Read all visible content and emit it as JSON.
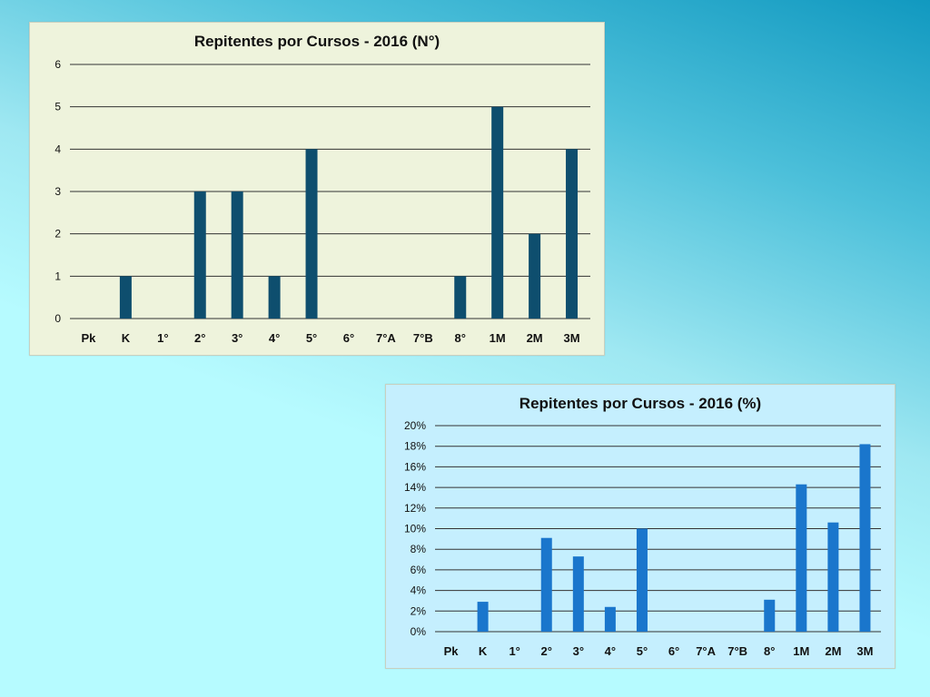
{
  "chart_data": [
    {
      "type": "bar",
      "title": "Repitentes por Cursos - 2016 (N°)",
      "xlabel": "",
      "ylabel": "",
      "categories": [
        "Pk",
        "K",
        "1°",
        "2°",
        "3°",
        "4°",
        "5°",
        "6°",
        "7°A",
        "7°B",
        "8°",
        "1M",
        "2M",
        "3M"
      ],
      "values": [
        0,
        1,
        0,
        3,
        3,
        1,
        4,
        0,
        0,
        0,
        1,
        5,
        2,
        4
      ],
      "ylim": [
        0,
        6
      ],
      "yticks": [
        0,
        1,
        2,
        3,
        4,
        5,
        6
      ],
      "ytick_labels": [
        "0",
        "1",
        "2",
        "3",
        "4",
        "5",
        "6"
      ],
      "grid": true,
      "bar_color": "#0e4e6e",
      "background": "#eef3dc"
    },
    {
      "type": "bar",
      "title": "Repitentes por Cursos - 2016 (%)",
      "xlabel": "",
      "ylabel": "",
      "categories": [
        "Pk",
        "K",
        "1°",
        "2°",
        "3°",
        "4°",
        "5°",
        "6°",
        "7°A",
        "7°B",
        "8°",
        "1M",
        "2M",
        "3M"
      ],
      "values": [
        0,
        2.9,
        0,
        9.1,
        7.3,
        2.4,
        10.0,
        0,
        0,
        0,
        3.1,
        14.3,
        10.6,
        18.2
      ],
      "ylim": [
        0,
        20
      ],
      "yticks": [
        0,
        2,
        4,
        6,
        8,
        10,
        12,
        14,
        16,
        18,
        20
      ],
      "ytick_labels": [
        "0%",
        "2%",
        "4%",
        "6%",
        "8%",
        "10%",
        "12%",
        "14%",
        "16%",
        "18%",
        "20%"
      ],
      "grid": true,
      "bar_color": "#1a76cc",
      "background": "#c5effe"
    }
  ]
}
